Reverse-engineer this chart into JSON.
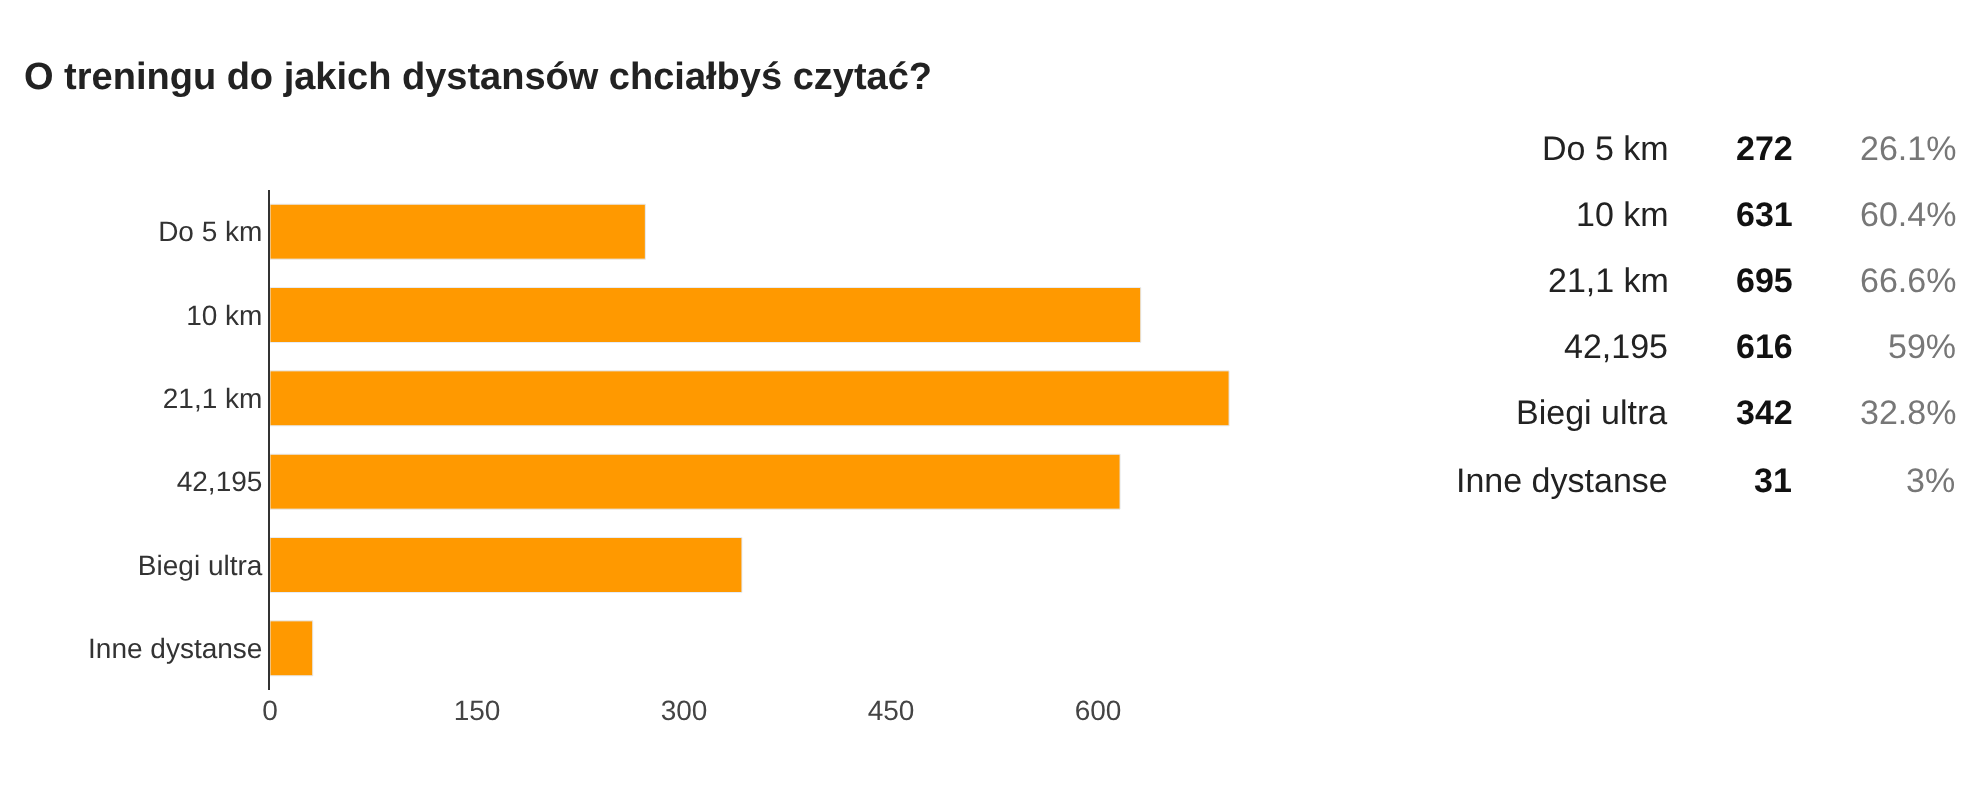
{
  "chart_data": [
    {
      "type": "bar",
      "orientation": "horizontal",
      "title": "O treningu do jakich dystansów chciałbyś czytać?",
      "categories": [
        "Do 5 km",
        "10 km",
        "21,1 km",
        "42,195",
        "Biegi ultra",
        "Inne dystanse"
      ],
      "values": [
        272,
        631,
        695,
        616,
        342,
        31
      ],
      "color": "#ff9900",
      "xlim": [
        0,
        700
      ],
      "xticks": [
        0,
        150,
        300,
        450,
        600
      ],
      "legend": false
    },
    {
      "type": "other",
      "annotations": [
        "Do 5 km",
        "272",
        "26.1%",
        "10 km",
        "631",
        "60.4%",
        "21,1 km",
        "695",
        "66.6%",
        "42,195",
        "616",
        "59%",
        "Biegi ultra",
        "342",
        "32.8%",
        "Inne dystanse",
        "31",
        "3%"
      ]
    }
  ]
}
